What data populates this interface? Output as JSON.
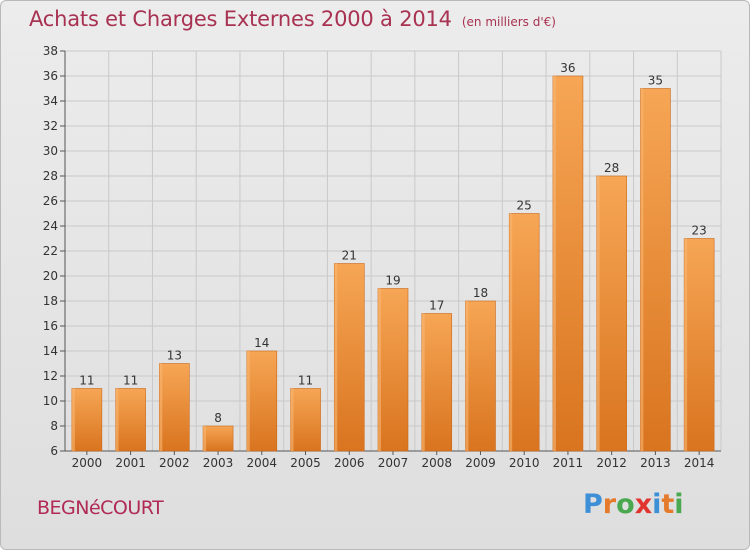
{
  "title": "Achats et Charges Externes 2000 à 2014",
  "unit_note": "(en milliers d'€)",
  "place_name": "BEGNéCOURT",
  "logo": {
    "text": "Proxiti",
    "letters": [
      {
        "ch": "P",
        "color": "#3d8fd6"
      },
      {
        "ch": "r",
        "color": "#e57a2a"
      },
      {
        "ch": "o",
        "color": "#4aa84f"
      },
      {
        "ch": "x",
        "color": "#e2342e"
      },
      {
        "ch": "i",
        "color": "#3d8fd6"
      },
      {
        "ch": "t",
        "color": "#e57a2a"
      },
      {
        "ch": "i",
        "color": "#4aa84f"
      }
    ]
  },
  "chart_data": {
    "type": "bar",
    "categories": [
      "2000",
      "2001",
      "2002",
      "2003",
      "2004",
      "2005",
      "2006",
      "2007",
      "2008",
      "2009",
      "2010",
      "2011",
      "2012",
      "2013",
      "2014"
    ],
    "values": [
      11,
      11,
      13,
      8,
      14,
      11,
      21,
      19,
      17,
      18,
      25,
      36,
      28,
      35,
      23
    ],
    "ylim": [
      6,
      38
    ],
    "yticks": [
      6,
      8,
      10,
      12,
      14,
      16,
      18,
      20,
      22,
      24,
      26,
      28,
      30,
      32,
      34,
      36,
      38
    ],
    "grid": true,
    "bar_color": "#f0983a",
    "bar_color_dark": "#d8721c"
  }
}
